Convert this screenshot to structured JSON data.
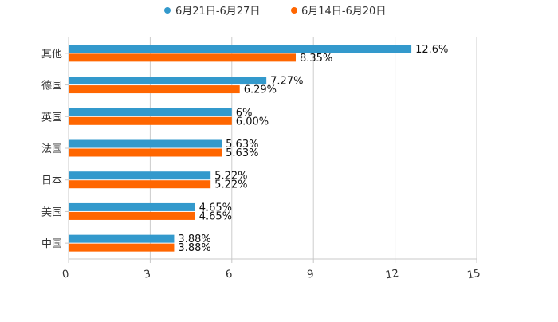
{
  "chart_data": {
    "type": "bar",
    "orientation": "horizontal",
    "title": "",
    "xlabel": "",
    "ylabel": "",
    "categories": [
      "其他",
      "德国",
      "英国",
      "法国",
      "日本",
      "美国",
      "中国"
    ],
    "series": [
      {
        "name": "6月21日-6月27日",
        "color": "#3399cc",
        "values": [
          12.6,
          7.27,
          6,
          5.63,
          5.22,
          4.65,
          3.88
        ],
        "labels": [
          "12.6%",
          "7.27%",
          "6%",
          "5.63%",
          "5.22%",
          "4.65%",
          "3.88%"
        ]
      },
      {
        "name": "6月14日-6月20日",
        "color": "#ff6600",
        "values": [
          8.35,
          6.29,
          6.0,
          5.63,
          5.22,
          4.65,
          3.88
        ],
        "labels": [
          "8.35%",
          "6.29%",
          "6.00%",
          "5.63%",
          "5.22%",
          "4.65%",
          "3.88%"
        ]
      }
    ],
    "xlim": [
      0,
      15
    ],
    "xticks": [
      0,
      3,
      6,
      9,
      12,
      15
    ],
    "xtick_labels": [
      "0",
      "3",
      "6",
      "9",
      "12",
      "15"
    ],
    "grid": true,
    "legend_position": "top-center"
  }
}
